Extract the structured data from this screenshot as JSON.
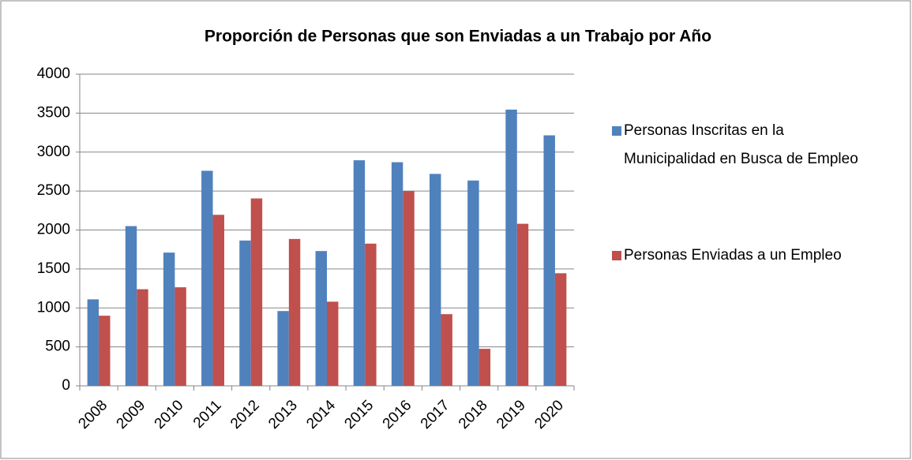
{
  "chart_data": {
    "type": "bar",
    "title": "Proporción de Personas que son Enviadas a un Trabajo por Año",
    "categories": [
      "2008",
      "2009",
      "2010",
      "2011",
      "2012",
      "2013",
      "2014",
      "2015",
      "2016",
      "2017",
      "2018",
      "2019",
      "2020"
    ],
    "series": [
      {
        "name": "Personas Inscritas en la Municipalidad en Busca de Empleo",
        "color": "#4f81bd",
        "values": [
          1110,
          2050,
          1710,
          2760,
          1865,
          960,
          1730,
          2895,
          2870,
          2720,
          2635,
          3545,
          3215
        ]
      },
      {
        "name": "Personas Enviadas a un Empleo",
        "color": "#c0504d",
        "values": [
          900,
          1240,
          1265,
          2195,
          2405,
          1885,
          1080,
          1825,
          2500,
          920,
          475,
          2080,
          1445
        ]
      }
    ],
    "ylim": [
      0,
      4000
    ],
    "yticks": [
      0,
      500,
      1000,
      1500,
      2000,
      2500,
      3000,
      3500,
      4000
    ],
    "grid": true,
    "legend": "right"
  }
}
